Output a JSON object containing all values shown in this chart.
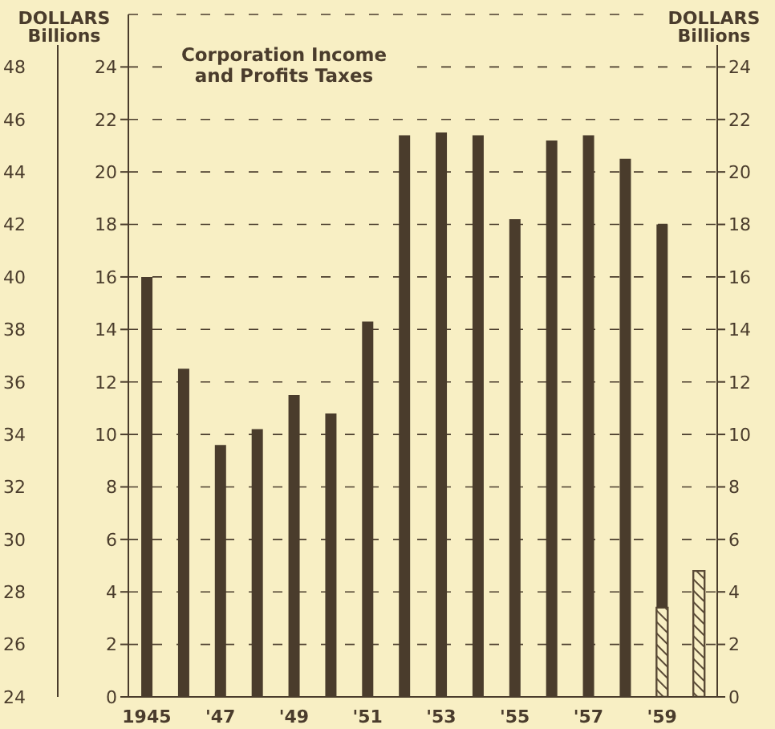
{
  "chart_data": {
    "type": "bar",
    "title": "Corporation Income\nand Profits Taxes",
    "ylabel": "DOLLARS\nBillions",
    "y2label": "DOLLARS\nBillions",
    "categories": [
      "1945",
      null,
      "'47",
      null,
      "'49",
      null,
      "'51",
      null,
      "'53",
      null,
      "'55",
      null,
      "'57",
      null,
      "'59",
      null
    ],
    "stacked": true,
    "series": [
      {
        "color": "#5a4a36",
        "values": [
          null,
          null,
          null,
          null,
          null,
          null,
          null,
          null,
          null,
          null,
          null,
          null,
          null,
          null,
          3.4,
          4.8
        ]
      },
      {
        "color": "#4a3c2c",
        "values": [
          16,
          12.5,
          9.6,
          10.2,
          11.5,
          10.8,
          14.3,
          21.4,
          21.5,
          21.4,
          18.2,
          21.2,
          21.4,
          20.5,
          14.6,
          null
        ]
      }
    ],
    "ylim": [
      0,
      26
    ],
    "yticks": [
      0,
      2,
      4,
      6,
      8,
      10,
      12,
      14,
      16,
      18,
      20,
      22,
      24
    ],
    "y2lim": [
      0,
      26
    ],
    "y2ticks": [
      0,
      2,
      4,
      6,
      8,
      10,
      12,
      14,
      16,
      18,
      20,
      22,
      24
    ],
    "y3lim": [
      24,
      50
    ],
    "y3ticks": [
      24,
      26,
      28,
      30,
      32,
      34,
      36,
      38,
      40,
      42,
      44,
      46,
      48
    ],
    "grid": "y",
    "legend": false
  }
}
